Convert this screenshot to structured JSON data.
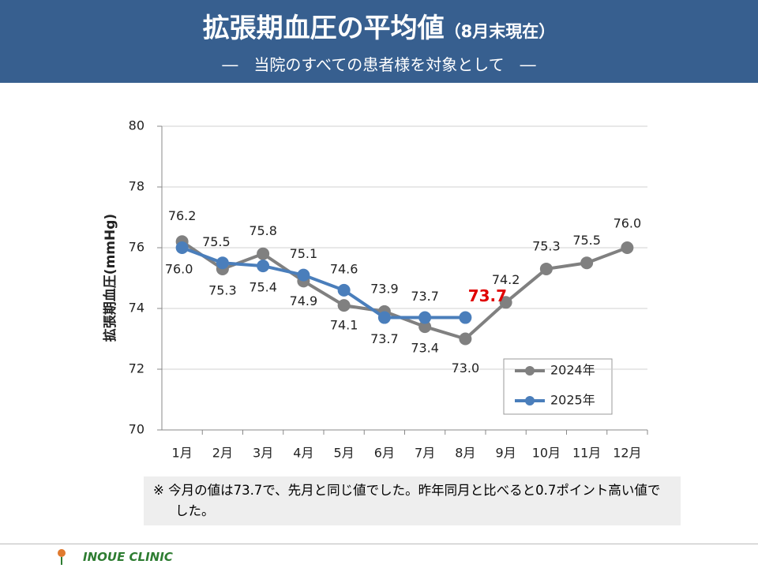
{
  "header": {
    "title": "拡張期血圧の平均値",
    "title_note": "（8月末現在）",
    "subtitle": "―　当院のすべての患者様を対象として　―"
  },
  "chart_data": {
    "type": "line",
    "y_label": "拡張期血圧(mmHg)",
    "categories": [
      "1月",
      "2月",
      "3月",
      "4月",
      "5月",
      "6月",
      "7月",
      "8月",
      "9月",
      "10月",
      "11月",
      "12月"
    ],
    "series": [
      {
        "name": "2024年",
        "color": "#808080",
        "values": [
          76.2,
          75.3,
          75.8,
          74.9,
          74.1,
          73.9,
          73.4,
          73.0,
          74.2,
          75.3,
          75.5,
          76.0
        ],
        "value_labels": [
          "76.2",
          "75.3",
          "75.8",
          "74.9",
          "74.1",
          "73.9",
          "73.4",
          "73.0",
          "74.2",
          "75.3",
          "75.5",
          "76.0"
        ]
      },
      {
        "name": "2025年",
        "color": "#4a7ebb",
        "values": [
          76.0,
          75.5,
          75.4,
          75.1,
          74.6,
          73.7,
          73.7,
          73.7,
          null,
          null,
          null,
          null
        ],
        "value_labels": [
          "76.0",
          "75.5",
          "75.4",
          "75.1",
          "74.6",
          "73.7",
          "73.7",
          "73.7",
          null,
          null,
          null,
          null
        ]
      }
    ],
    "ylim": [
      70,
      80
    ],
    "yticks": [
      70,
      72,
      74,
      76,
      78,
      80
    ],
    "grid": true,
    "legend": "lower right"
  },
  "note": "※ 今月の値は73.7で、先月と同じ値でした。昨年同月と比べると0.7ポイント高い値でした。",
  "footer": {
    "clinic": "INOUE CLINIC"
  }
}
